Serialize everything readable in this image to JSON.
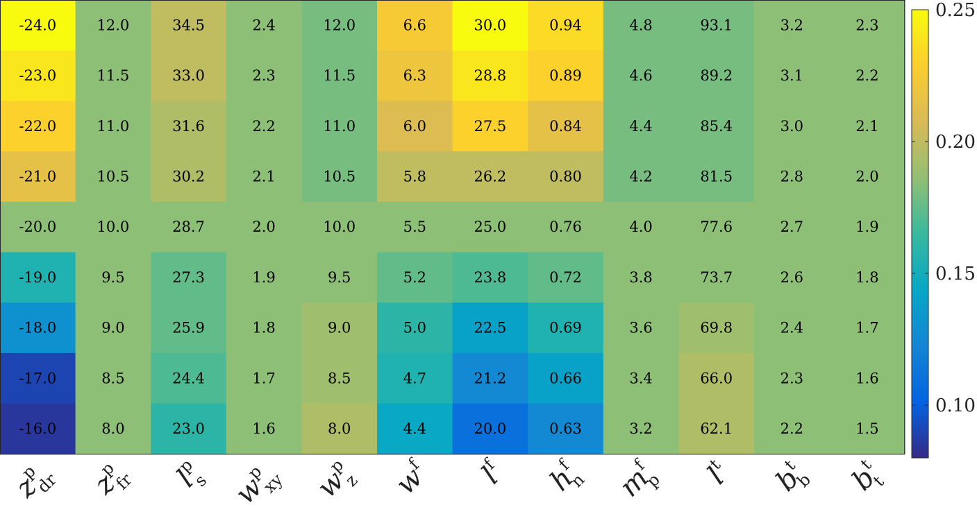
{
  "chart_data": {
    "type": "heatmap",
    "title": "",
    "xlabel": "",
    "ylabel": "",
    "columns": [
      {
        "sym": "z",
        "sup": "p",
        "sub": "dr"
      },
      {
        "sym": "z",
        "sup": "p",
        "sub": "fr"
      },
      {
        "sym": "l",
        "sup": "p",
        "sub": "s"
      },
      {
        "sym": "w",
        "sup": "p",
        "sub": "xy"
      },
      {
        "sym": "w",
        "sup": "p",
        "sub": "z"
      },
      {
        "sym": "w",
        "sup": "f",
        "sub": ""
      },
      {
        "sym": "l",
        "sup": "f",
        "sub": ""
      },
      {
        "sym": "h",
        "sup": "f",
        "sub": "n"
      },
      {
        "sym": "m",
        "sup": "f",
        "sub": "p"
      },
      {
        "sym": "l",
        "sup": "t",
        "sub": ""
      },
      {
        "sym": "b",
        "sup": "t",
        "sub": "b"
      },
      {
        "sym": "b",
        "sup": "t",
        "sub": "t"
      }
    ],
    "cell_labels": [
      [
        "-24.0",
        "12.0",
        "34.5",
        "2.4",
        "12.0",
        "6.6",
        "30.0",
        "0.94",
        "4.8",
        "93.1",
        "3.2",
        "2.3"
      ],
      [
        "-23.0",
        "11.5",
        "33.0",
        "2.3",
        "11.5",
        "6.3",
        "28.8",
        "0.89",
        "4.6",
        "89.2",
        "3.1",
        "2.2"
      ],
      [
        "-22.0",
        "11.0",
        "31.6",
        "2.2",
        "11.0",
        "6.0",
        "27.5",
        "0.84",
        "4.4",
        "85.4",
        "3.0",
        "2.1"
      ],
      [
        "-21.0",
        "10.5",
        "30.2",
        "2.1",
        "10.5",
        "5.8",
        "26.2",
        "0.80",
        "4.2",
        "81.5",
        "2.8",
        "2.0"
      ],
      [
        "-20.0",
        "10.0",
        "28.7",
        "2.0",
        "10.0",
        "5.5",
        "25.0",
        "0.76",
        "4.0",
        "77.6",
        "2.7",
        "1.9"
      ],
      [
        "-19.0",
        "9.5",
        "27.3",
        "1.9",
        "9.5",
        "5.2",
        "23.8",
        "0.72",
        "3.8",
        "73.7",
        "2.6",
        "1.8"
      ],
      [
        "-18.0",
        "9.0",
        "25.9",
        "1.8",
        "9.0",
        "5.0",
        "22.5",
        "0.69",
        "3.6",
        "69.8",
        "2.4",
        "1.7"
      ],
      [
        "-17.0",
        "8.5",
        "24.4",
        "1.7",
        "8.5",
        "4.7",
        "21.2",
        "0.66",
        "3.4",
        "66.0",
        "2.3",
        "1.6"
      ],
      [
        "-16.0",
        "8.0",
        "23.0",
        "1.6",
        "8.0",
        "4.4",
        "20.0",
        "0.63",
        "3.2",
        "62.1",
        "2.2",
        "1.5"
      ]
    ],
    "color_values": [
      [
        0.25,
        0.185,
        0.2,
        0.185,
        0.18,
        0.225,
        0.25,
        0.235,
        0.18,
        0.18,
        0.185,
        0.185
      ],
      [
        0.24,
        0.185,
        0.2,
        0.185,
        0.18,
        0.22,
        0.24,
        0.23,
        0.18,
        0.18,
        0.185,
        0.185
      ],
      [
        0.23,
        0.185,
        0.195,
        0.185,
        0.18,
        0.21,
        0.23,
        0.215,
        0.18,
        0.18,
        0.185,
        0.185
      ],
      [
        0.215,
        0.185,
        0.195,
        0.185,
        0.18,
        0.2,
        0.2,
        0.2,
        0.18,
        0.18,
        0.185,
        0.185
      ],
      [
        0.185,
        0.185,
        0.185,
        0.185,
        0.185,
        0.185,
        0.185,
        0.185,
        0.185,
        0.185,
        0.185,
        0.185
      ],
      [
        0.155,
        0.185,
        0.175,
        0.185,
        0.185,
        0.175,
        0.17,
        0.175,
        0.185,
        0.185,
        0.185,
        0.185
      ],
      [
        0.13,
        0.185,
        0.175,
        0.185,
        0.19,
        0.16,
        0.14,
        0.155,
        0.185,
        0.19,
        0.185,
        0.185
      ],
      [
        0.09,
        0.185,
        0.17,
        0.185,
        0.19,
        0.155,
        0.125,
        0.14,
        0.185,
        0.195,
        0.185,
        0.185
      ],
      [
        0.085,
        0.185,
        0.16,
        0.185,
        0.195,
        0.145,
        0.11,
        0.125,
        0.185,
        0.195,
        0.185,
        0.185
      ]
    ],
    "colorbar": {
      "colormap": "parula",
      "range": [
        0.08,
        0.25
      ],
      "ticks": [
        0.1,
        0.15,
        0.2,
        0.25
      ],
      "tick_labels": [
        "0.10",
        "0.15",
        "0.20",
        "0.25"
      ]
    }
  }
}
